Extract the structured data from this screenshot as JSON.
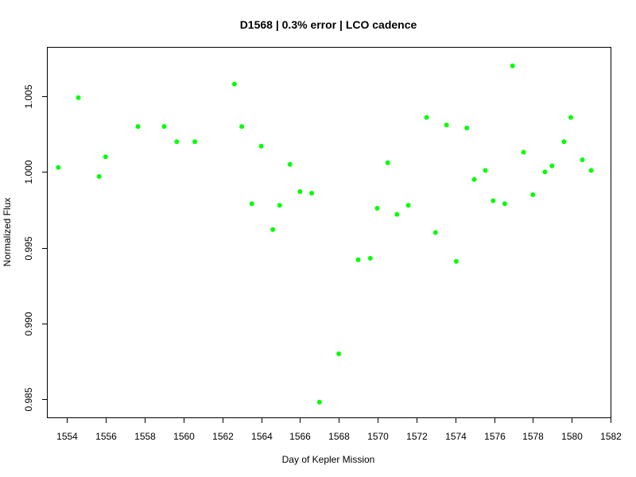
{
  "chart_data": {
    "type": "scatter",
    "title": "D1568 | 0.3% error | LCO cadence",
    "xlabel": "Day of Kepler Mission",
    "ylabel": "Normalized Flux",
    "xlim": [
      1553,
      1582
    ],
    "ylim": [
      0.9838,
      1.0082
    ],
    "x_ticks": [
      1554,
      1556,
      1558,
      1560,
      1562,
      1564,
      1566,
      1568,
      1570,
      1572,
      1574,
      1576,
      1578,
      1580,
      1582
    ],
    "y_ticks": [
      0.985,
      0.99,
      0.995,
      1.0,
      1.005
    ],
    "y_tick_labels": [
      "0.985",
      "0.990",
      "0.995",
      "1.000",
      "1.005"
    ],
    "marker_color": "#00ff00",
    "grid": false,
    "series": [
      {
        "points": [
          [
            1553.55,
            1.0003
          ],
          [
            1554.58,
            1.0049
          ],
          [
            1555.65,
            0.9997
          ],
          [
            1555.98,
            1.001
          ],
          [
            1557.65,
            1.003
          ],
          [
            1559.0,
            1.003
          ],
          [
            1559.65,
            1.002
          ],
          [
            1560.58,
            1.002
          ],
          [
            1562.62,
            1.0058
          ],
          [
            1563.0,
            1.003
          ],
          [
            1563.52,
            0.9979
          ],
          [
            1564.0,
            1.0017
          ],
          [
            1564.6,
            0.9962
          ],
          [
            1564.95,
            0.9978
          ],
          [
            1565.48,
            1.0005
          ],
          [
            1566.0,
            0.9987
          ],
          [
            1566.6,
            0.9986
          ],
          [
            1567.0,
            0.9848
          ],
          [
            1568.0,
            0.988
          ],
          [
            1569.0,
            0.9942
          ],
          [
            1569.62,
            0.9943
          ],
          [
            1569.98,
            0.9976
          ],
          [
            1570.52,
            1.0006
          ],
          [
            1571.0,
            0.9972
          ],
          [
            1571.58,
            0.9978
          ],
          [
            1572.52,
            1.0036
          ],
          [
            1572.98,
            0.996
          ],
          [
            1573.55,
            1.0031
          ],
          [
            1574.05,
            0.9941
          ],
          [
            1574.6,
            1.0029
          ],
          [
            1574.98,
            0.9995
          ],
          [
            1575.55,
            1.0001
          ],
          [
            1575.95,
            0.9981
          ],
          [
            1576.55,
            0.9979
          ],
          [
            1576.95,
            1.007
          ],
          [
            1577.52,
            1.0013
          ],
          [
            1578.0,
            0.9985
          ],
          [
            1578.62,
            1.0
          ],
          [
            1578.98,
            1.0004
          ],
          [
            1579.6,
            1.002
          ],
          [
            1579.95,
            1.0036
          ],
          [
            1580.55,
            1.0008
          ],
          [
            1581.0,
            1.0001
          ]
        ]
      }
    ]
  }
}
